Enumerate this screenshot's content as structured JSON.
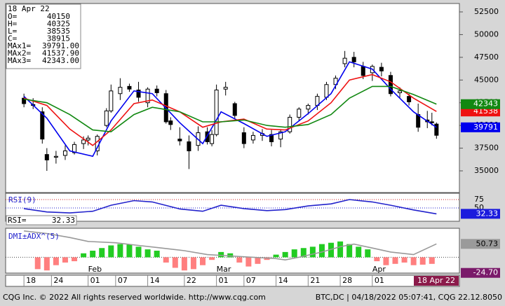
{
  "header": {
    "date": "18 Apr 22",
    "rows": [
      [
        "O=",
        "40150"
      ],
      [
        "H=",
        "40325"
      ],
      [
        "L=",
        "38535"
      ],
      [
        "C=",
        "38915"
      ]
    ]
  },
  "footer": {
    "left": "CQG Inc. © 2022 All rights reserved worldwide. http://www.cqg.com",
    "right": "BTC,DC | 04/18/2022 05:07:41, CQG 22.12.8050"
  },
  "x_axis": {
    "xlim": [
      -4,
      95
    ],
    "xticks": [
      {
        "value": 0,
        "label": "18"
      },
      {
        "value": 6,
        "label": "24"
      },
      {
        "value": 14,
        "label": "01"
      },
      {
        "value": 20,
        "label": "07"
      },
      {
        "value": 27,
        "label": "14"
      },
      {
        "value": 35,
        "label": "22"
      },
      {
        "value": 42,
        "label": "01"
      },
      {
        "value": 48,
        "label": "07"
      },
      {
        "value": 55,
        "label": "14"
      },
      {
        "value": 62,
        "label": "21"
      },
      {
        "value": 69,
        "label": "28"
      },
      {
        "value": 76,
        "label": "01"
      }
    ],
    "months": [
      {
        "value": 14,
        "label": "Feb"
      },
      {
        "value": 42,
        "label": "Mar"
      },
      {
        "value": 76,
        "label": "Apr"
      }
    ],
    "current": "18 Apr 22"
  },
  "chart_data": [
    {
      "type": "candlestick",
      "ylim": [
        32610,
        53425
      ],
      "yticks": [
        35000,
        37500,
        40000,
        42500,
        45000,
        47500,
        50000,
        52500
      ],
      "up_color": "#ffffff",
      "down_color": "#000000",
      "x": [
        0,
        2,
        4,
        5,
        7,
        9,
        11,
        13,
        14,
        16,
        18,
        19,
        21,
        23,
        25,
        27,
        29,
        31,
        32,
        34,
        36,
        38,
        40,
        41,
        42,
        44,
        46,
        48,
        50,
        52,
        54,
        56,
        58,
        60,
        62,
        64,
        66,
        68,
        70,
        72,
        74,
        76,
        78,
        80,
        82,
        84,
        86,
        88,
        89,
        90
      ],
      "open": [
        43000,
        42300,
        41500,
        36800,
        36500,
        36700,
        37000,
        38000,
        38400,
        37200,
        40000,
        41600,
        43500,
        44300,
        43900,
        42500,
        44000,
        43500,
        40500,
        38500,
        38200,
        37800,
        39300,
        38000,
        39000,
        44000,
        42400,
        39200,
        38400,
        38900,
        39000,
        38500,
        39300,
        40900,
        41800,
        42200,
        43100,
        44500,
        46800,
        47500,
        46500,
        45800,
        46400,
        45500,
        43600,
        43200,
        41200,
        40600,
        40400,
        40150
      ],
      "high": [
        43500,
        43000,
        42000,
        37500,
        37200,
        37800,
        38200,
        38800,
        38900,
        39000,
        41900,
        44500,
        45200,
        44600,
        44800,
        44200,
        44400,
        43900,
        40900,
        39800,
        38900,
        39900,
        39800,
        39500,
        44500,
        44800,
        42600,
        39800,
        39300,
        39600,
        39500,
        39600,
        41200,
        42000,
        42400,
        43500,
        44800,
        45500,
        48200,
        48100,
        47000,
        46700,
        46900,
        45900,
        44200,
        43500,
        42400,
        41600,
        41400,
        40325
      ],
      "low": [
        42000,
        41800,
        38000,
        35000,
        35800,
        36200,
        36800,
        37400,
        37800,
        36700,
        39800,
        41400,
        42800,
        43700,
        42600,
        42000,
        43200,
        40200,
        39500,
        37800,
        35200,
        37200,
        37900,
        37700,
        38800,
        43300,
        40800,
        37500,
        38000,
        38300,
        37700,
        37600,
        39100,
        40500,
        41200,
        41700,
        42800,
        44000,
        46400,
        46400,
        45100,
        44900,
        45400,
        43200,
        43000,
        42200,
        39300,
        39700,
        40000,
        38535
      ],
      "close": [
        42400,
        42200,
        38500,
        36200,
        36600,
        37200,
        37900,
        38400,
        38600,
        38800,
        41600,
        43800,
        44200,
        44000,
        43100,
        44000,
        43600,
        40400,
        40100,
        38300,
        37200,
        39200,
        38200,
        39000,
        43900,
        44200,
        41100,
        38000,
        38900,
        39100,
        38200,
        39300,
        40900,
        41800,
        42200,
        43200,
        44500,
        45200,
        47400,
        47000,
        45500,
        46500,
        46000,
        43500,
        43800,
        42600,
        39800,
        40400,
        40300,
        38915
      ],
      "series": [
        {
          "name": "MAx1=",
          "header_label": "39791.00",
          "last_label": "39791",
          "color": "#0000ee",
          "x": [
            0,
            5,
            10,
            15,
            19,
            24,
            28,
            34,
            39,
            43,
            48,
            53,
            57,
            62,
            67,
            71,
            76,
            80,
            85,
            90
          ],
          "values": [
            43200,
            40800,
            37200,
            36600,
            40500,
            43800,
            43500,
            40300,
            38000,
            41500,
            40200,
            38800,
            39300,
            41300,
            43500,
            47000,
            46200,
            44000,
            41500,
            39791
          ]
        },
        {
          "name": "MAx2=",
          "header_label": "41537.90",
          "last_label": "41538",
          "color": "#ee1111",
          "x": [
            0,
            5,
            10,
            15,
            19,
            24,
            28,
            34,
            39,
            43,
            48,
            53,
            57,
            62,
            67,
            71,
            76,
            80,
            85,
            90
          ],
          "values": [
            43000,
            42200,
            39600,
            37800,
            39500,
            42400,
            42800,
            41500,
            39800,
            40400,
            40700,
            39600,
            39500,
            40500,
            42500,
            45000,
            45600,
            44800,
            43000,
            41537.9
          ]
        },
        {
          "name": "MAx3=",
          "header_label": "42343.00",
          "last_label": "42343",
          "color": "#118811",
          "x": [
            0,
            5,
            10,
            15,
            19,
            24,
            28,
            34,
            39,
            43,
            48,
            53,
            57,
            62,
            67,
            71,
            76,
            80,
            85,
            90
          ],
          "values": [
            42900,
            42500,
            41200,
            39500,
            39300,
            41200,
            42000,
            41500,
            40400,
            40400,
            40600,
            40000,
            39800,
            40100,
            41200,
            43000,
            44300,
            44300,
            43400,
            42343
          ]
        }
      ]
    },
    {
      "type": "line",
      "title": "RSI(9)",
      "value_title": "RSI=",
      "ylim": [
        10,
        94
      ],
      "yticks": [
        75,
        50
      ],
      "color": "#2222cc",
      "x": [
        0,
        5,
        10,
        15,
        19,
        24,
        28,
        34,
        39,
        43,
        48,
        53,
        57,
        62,
        67,
        71,
        76,
        80,
        85,
        90
      ],
      "values": [
        48,
        38,
        35,
        40,
        58,
        72,
        68,
        47,
        40,
        58,
        48,
        42,
        45,
        56,
        62,
        75,
        68,
        58,
        44,
        32.33
      ]
    },
    {
      "type": "bar",
      "title": "DMI±ADX^(5)",
      "ylim": [
        -60,
        110
      ],
      "positive_color": "#22cc22",
      "negative_color": "#ff7f7f",
      "x": [
        3,
        5,
        7,
        9,
        11,
        13,
        15,
        17,
        19,
        21,
        23,
        25,
        27,
        29,
        31,
        33,
        35,
        37,
        39,
        41,
        43,
        45,
        47,
        49,
        51,
        53,
        55,
        57,
        59,
        61,
        63,
        65,
        67,
        69,
        71,
        73,
        75,
        77,
        79,
        81,
        83,
        85,
        87,
        89
      ],
      "values": [
        -45,
        -50,
        -30,
        -20,
        -15,
        15,
        25,
        35,
        45,
        50,
        48,
        40,
        30,
        25,
        -20,
        -40,
        -50,
        -45,
        -30,
        -10,
        20,
        15,
        -20,
        -35,
        -25,
        -10,
        10,
        20,
        30,
        35,
        40,
        50,
        55,
        60,
        50,
        40,
        30,
        -15,
        -30,
        -25,
        -20,
        -30,
        -28,
        -25
      ],
      "adx": {
        "color": "#999999",
        "last_label": "50.73",
        "x": [
          0,
          5,
          10,
          14,
          20,
          25,
          30,
          35,
          40,
          45,
          50,
          55,
          57,
          60,
          65,
          69,
          72,
          76,
          80,
          85,
          90
        ],
        "values": [
          100,
          90,
          75,
          60,
          55,
          45,
          35,
          25,
          10,
          5,
          0,
          -5,
          -10,
          0,
          20,
          40,
          50,
          35,
          20,
          10,
          50.73
        ]
      },
      "last_bar_label": "-24.70",
      "last_bar_value": -24.7,
      "last_bar_color": "#7a1a6a"
    }
  ]
}
